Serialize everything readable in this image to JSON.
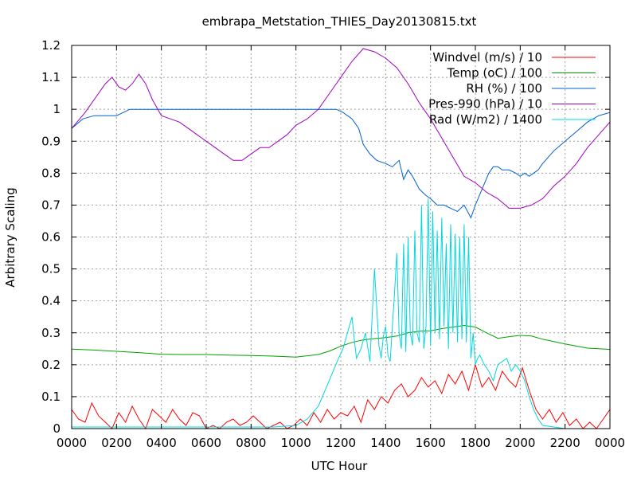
{
  "chart_data": {
    "type": "line",
    "title": "embrapa_Metstation_THIES_Day20130815.txt",
    "xlabel": "UTC Hour",
    "ylabel": "Arbitrary Scaling",
    "xlim": [
      0,
      2400
    ],
    "ylim": [
      0,
      1.2
    ],
    "grid": true,
    "legend_position": "top-right",
    "x_tick_labels": [
      "0000",
      "0200",
      "0400",
      "0600",
      "0800",
      "1000",
      "1200",
      "1400",
      "1600",
      "1800",
      "2000",
      "2200",
      "0000"
    ],
    "y_tick_labels": [
      "0",
      "0.1",
      "0.2",
      "0.3",
      "0.4",
      "0.5",
      "0.6",
      "0.7",
      "0.8",
      "0.9",
      "1",
      "1.1",
      "1.2"
    ],
    "series": [
      {
        "name": "Windvel (m/s) / 10",
        "color": "#ff0000",
        "x": [
          0,
          30,
          60,
          90,
          120,
          150,
          180,
          210,
          240,
          270,
          300,
          330,
          360,
          390,
          420,
          450,
          480,
          510,
          540,
          570,
          600,
          630,
          660,
          690,
          720,
          750,
          780,
          810,
          840,
          870,
          900,
          930,
          960,
          990,
          1020,
          1050,
          1080,
          1110,
          1140,
          1170,
          1200,
          1230,
          1260,
          1290,
          1320,
          1350,
          1380,
          1410,
          1440,
          1470,
          1500,
          1530,
          1560,
          1590,
          1620,
          1650,
          1680,
          1710,
          1740,
          1770,
          1800,
          1830,
          1860,
          1890,
          1920,
          1950,
          1980,
          2010,
          2040,
          2070,
          2100,
          2130,
          2160,
          2190,
          2220,
          2250,
          2280,
          2310,
          2340,
          2370,
          2400
        ],
        "y": [
          0.06,
          0.03,
          0.02,
          0.08,
          0.04,
          0.02,
          0.0,
          0.05,
          0.02,
          0.07,
          0.03,
          0.0,
          0.06,
          0.04,
          0.02,
          0.06,
          0.03,
          0.01,
          0.05,
          0.04,
          0.0,
          0.01,
          0.0,
          0.02,
          0.03,
          0.01,
          0.02,
          0.04,
          0.02,
          0.0,
          0.01,
          0.02,
          0.0,
          0.01,
          0.03,
          0.01,
          0.05,
          0.02,
          0.06,
          0.03,
          0.05,
          0.04,
          0.07,
          0.02,
          0.09,
          0.06,
          0.1,
          0.08,
          0.12,
          0.14,
          0.1,
          0.12,
          0.16,
          0.13,
          0.15,
          0.11,
          0.17,
          0.14,
          0.18,
          0.12,
          0.2,
          0.13,
          0.16,
          0.12,
          0.18,
          0.15,
          0.13,
          0.19,
          0.12,
          0.06,
          0.03,
          0.06,
          0.02,
          0.05,
          0.01,
          0.03,
          0.0,
          0.02,
          0.0,
          0.03,
          0.06
        ]
      },
      {
        "name": "Temp (oC) / 100",
        "color": "#00a000",
        "x": [
          0,
          100,
          200,
          300,
          400,
          500,
          600,
          700,
          800,
          900,
          1000,
          1100,
          1150,
          1200,
          1250,
          1300,
          1350,
          1400,
          1450,
          1500,
          1550,
          1600,
          1650,
          1700,
          1750,
          1800,
          1850,
          1900,
          1950,
          2000,
          2050,
          2100,
          2200,
          2300,
          2400
        ],
        "y": [
          0.249,
          0.246,
          0.242,
          0.238,
          0.233,
          0.232,
          0.232,
          0.23,
          0.229,
          0.227,
          0.224,
          0.232,
          0.243,
          0.258,
          0.27,
          0.278,
          0.282,
          0.285,
          0.29,
          0.3,
          0.305,
          0.306,
          0.313,
          0.318,
          0.323,
          0.318,
          0.3,
          0.283,
          0.288,
          0.292,
          0.29,
          0.28,
          0.265,
          0.252,
          0.248
        ]
      },
      {
        "name": "RH (%) / 100",
        "color": "#0060d0",
        "x": [
          0,
          50,
          100,
          150,
          200,
          230,
          260,
          300,
          400,
          500,
          600,
          700,
          800,
          900,
          1000,
          1100,
          1150,
          1180,
          1210,
          1250,
          1280,
          1300,
          1330,
          1360,
          1400,
          1430,
          1460,
          1480,
          1500,
          1520,
          1550,
          1580,
          1600,
          1630,
          1660,
          1690,
          1720,
          1750,
          1780,
          1800,
          1830,
          1860,
          1880,
          1900,
          1920,
          1950,
          1980,
          2000,
          2020,
          2040,
          2060,
          2080,
          2100,
          2150,
          2200,
          2250,
          2300,
          2350,
          2400
        ],
        "y": [
          0.94,
          0.97,
          0.98,
          0.98,
          0.98,
          0.99,
          1.0,
          1.0,
          1.0,
          1.0,
          1.0,
          1.0,
          1.0,
          1.0,
          1.0,
          1.0,
          1.0,
          1.0,
          0.99,
          0.97,
          0.94,
          0.89,
          0.86,
          0.84,
          0.83,
          0.82,
          0.84,
          0.78,
          0.81,
          0.79,
          0.75,
          0.73,
          0.72,
          0.7,
          0.7,
          0.69,
          0.68,
          0.7,
          0.66,
          0.7,
          0.75,
          0.8,
          0.82,
          0.82,
          0.81,
          0.81,
          0.8,
          0.79,
          0.8,
          0.79,
          0.8,
          0.81,
          0.83,
          0.87,
          0.9,
          0.93,
          0.96,
          0.98,
          0.99
        ]
      },
      {
        "name": "Pres-990 (hPa) / 10",
        "color": "#a000c0",
        "x": [
          0,
          60,
          120,
          150,
          180,
          210,
          240,
          270,
          300,
          330,
          360,
          400,
          440,
          480,
          520,
          560,
          600,
          640,
          680,
          720,
          760,
          800,
          840,
          880,
          920,
          960,
          1000,
          1050,
          1100,
          1150,
          1200,
          1250,
          1300,
          1350,
          1400,
          1450,
          1500,
          1550,
          1600,
          1650,
          1700,
          1750,
          1800,
          1850,
          1900,
          1950,
          2000,
          2050,
          2100,
          2150,
          2200,
          2250,
          2300,
          2350,
          2400
        ],
        "y": [
          0.94,
          0.99,
          1.05,
          1.08,
          1.1,
          1.07,
          1.06,
          1.08,
          1.11,
          1.08,
          1.03,
          0.98,
          0.97,
          0.96,
          0.94,
          0.92,
          0.9,
          0.88,
          0.86,
          0.84,
          0.84,
          0.86,
          0.88,
          0.88,
          0.9,
          0.92,
          0.95,
          0.97,
          1.0,
          1.05,
          1.1,
          1.15,
          1.19,
          1.18,
          1.16,
          1.13,
          1.08,
          1.02,
          0.97,
          0.91,
          0.85,
          0.79,
          0.77,
          0.74,
          0.72,
          0.69,
          0.69,
          0.7,
          0.72,
          0.76,
          0.79,
          0.83,
          0.88,
          0.92,
          0.96
        ]
      },
      {
        "name": "Rad (W/m2) / 1400",
        "color": "#00d8e0",
        "x": [
          0,
          300,
          600,
          900,
          1000,
          1050,
          1100,
          1130,
          1160,
          1190,
          1210,
          1230,
          1250,
          1260,
          1270,
          1290,
          1310,
          1330,
          1350,
          1370,
          1380,
          1390,
          1400,
          1410,
          1420,
          1440,
          1450,
          1460,
          1470,
          1480,
          1490,
          1500,
          1510,
          1520,
          1530,
          1540,
          1550,
          1560,
          1570,
          1580,
          1590,
          1600,
          1610,
          1620,
          1630,
          1640,
          1650,
          1660,
          1670,
          1680,
          1690,
          1700,
          1710,
          1720,
          1730,
          1740,
          1750,
          1760,
          1770,
          1780,
          1790,
          1800,
          1810,
          1820,
          1840,
          1860,
          1880,
          1900,
          1920,
          1940,
          1960,
          1980,
          2000,
          2020,
          2040,
          2060,
          2080,
          2100,
          2200,
          2300,
          2400
        ],
        "y": [
          0.005,
          0.005,
          0.005,
          0.005,
          0.01,
          0.03,
          0.07,
          0.12,
          0.17,
          0.22,
          0.25,
          0.3,
          0.35,
          0.28,
          0.22,
          0.25,
          0.3,
          0.21,
          0.5,
          0.26,
          0.22,
          0.29,
          0.32,
          0.23,
          0.21,
          0.43,
          0.55,
          0.3,
          0.25,
          0.58,
          0.24,
          0.6,
          0.3,
          0.26,
          0.62,
          0.3,
          0.27,
          0.7,
          0.25,
          0.32,
          0.72,
          0.26,
          0.68,
          0.3,
          0.62,
          0.28,
          0.66,
          0.32,
          0.58,
          0.25,
          0.64,
          0.3,
          0.61,
          0.27,
          0.6,
          0.28,
          0.64,
          0.27,
          0.6,
          0.22,
          0.3,
          0.2,
          0.22,
          0.23,
          0.2,
          0.18,
          0.15,
          0.2,
          0.21,
          0.22,
          0.18,
          0.2,
          0.18,
          0.15,
          0.1,
          0.06,
          0.03,
          0.01,
          0.0,
          0.0,
          0.0
        ]
      }
    ]
  }
}
